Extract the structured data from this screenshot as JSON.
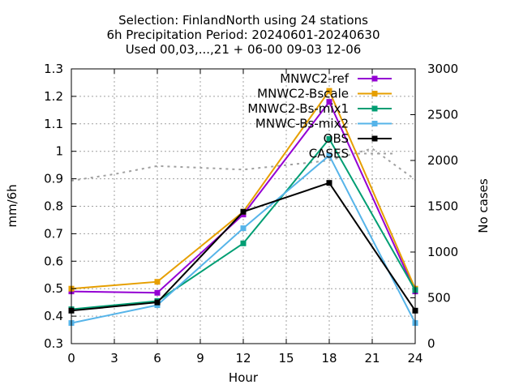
{
  "chart_data": {
    "type": "line",
    "title": [
      "Selection: FinlandNorth using    24 stations",
      "6h Precipitation   Period: 20240601-20240630",
      "Used 00,03,...,21 + 06-00 09-03 12-06"
    ],
    "xlabel": "Hour",
    "ylabel": "mm/6h",
    "y2label": "No cases",
    "xlim": [
      0,
      24
    ],
    "ylim": [
      0.3,
      1.3
    ],
    "y2lim": [
      0,
      3000
    ],
    "xticks": [
      "0",
      "3",
      "6",
      "9",
      "12",
      "15",
      "18",
      "21",
      "24"
    ],
    "yticks": [
      "0.3",
      "0.4",
      "0.5",
      "0.6",
      "0.7",
      "0.8",
      "0.9",
      "1",
      "1.1",
      "1.2",
      "1.3"
    ],
    "y2ticks": [
      "0",
      "500",
      "1000",
      "1500",
      "2000",
      "2500",
      "3000"
    ],
    "grid": true,
    "legend_position": "top-right",
    "x": [
      0,
      6,
      12,
      18,
      24
    ],
    "series": [
      {
        "name": "MNWC2-ref",
        "color": "#9400d3",
        "axis": "y",
        "marker": "filled-square",
        "values": [
          0.49,
          0.485,
          0.77,
          1.18,
          0.49
        ]
      },
      {
        "name": "MNWC2-Bscale",
        "color": "#e69f00",
        "axis": "y",
        "marker": "filled-square",
        "values": [
          0.5,
          0.525,
          0.78,
          1.22,
          0.5
        ]
      },
      {
        "name": "MNWC2-Bs-mix1",
        "color": "#009e73",
        "axis": "y",
        "marker": "filled-square",
        "values": [
          0.425,
          0.455,
          0.665,
          1.045,
          0.495
        ]
      },
      {
        "name": "MNWC-Bs-mix2",
        "color": "#56b4e9",
        "axis": "y",
        "marker": "filled-square",
        "values": [
          0.375,
          0.44,
          0.72,
          0.985,
          0.375
        ]
      },
      {
        "name": "OBS",
        "color": "#000000",
        "axis": "y",
        "marker": "filled-square",
        "values": [
          0.42,
          0.45,
          0.78,
          0.885,
          0.42
        ]
      },
      {
        "name": "CASES",
        "color": "#a0a0a0",
        "axis": "y2",
        "dashed": true,
        "x": [
          0,
          3,
          6,
          9,
          12,
          15,
          18,
          21,
          24
        ],
        "values": [
          1780,
          1850,
          1940,
          1920,
          1900,
          1950,
          2000,
          2130,
          1790
        ]
      }
    ]
  }
}
